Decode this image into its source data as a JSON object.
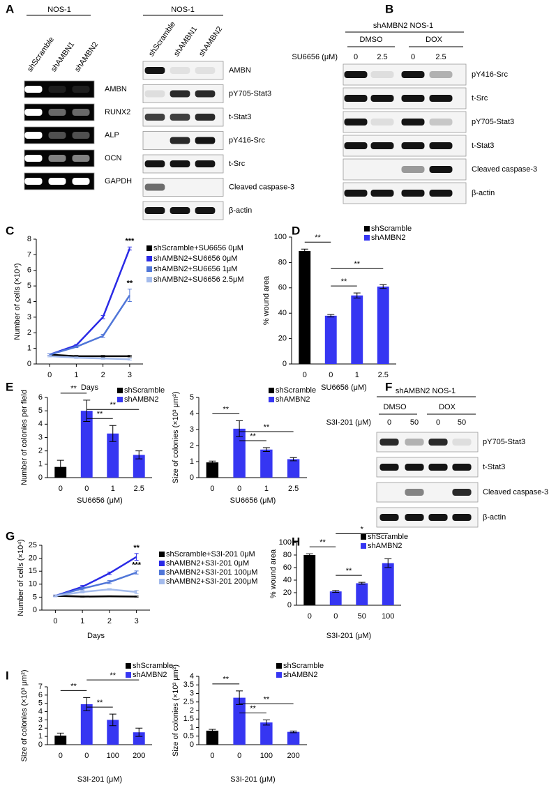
{
  "panel_letters": [
    "A",
    "B",
    "C",
    "D",
    "E",
    "F",
    "G",
    "H",
    "I"
  ],
  "blots": [
    {
      "header": "NOS-1",
      "lanes": [
        "shScramble",
        "shAMBN1",
        "shAMBN2"
      ],
      "rows": [
        "AMBN",
        "RUNX2",
        "ALP",
        "OCN",
        "GAPDH"
      ]
    },
    {
      "header": "NOS-1",
      "lanes": [
        "shScramble",
        "shAMBN1",
        "shAMBN2"
      ],
      "rows": [
        "AMBN",
        "pY705-Stat3",
        "t-Stat3",
        "pY416-Src",
        "t-Src",
        "Cleaved caspase-3",
        "β-actin"
      ]
    },
    {
      "header": "shAMBN2 NOS-1",
      "groups": [
        "DMSO",
        "DOX"
      ],
      "dose_label": "SU6656 (μM)",
      "doses": [
        "0",
        "2.5",
        "0",
        "2.5"
      ],
      "rows": [
        "pY416-Src",
        "t-Src",
        "pY705-Stat3",
        "t-Stat3",
        "Cleaved caspase-3",
        "β-actin"
      ]
    },
    {
      "header": "shAMBN2 NOS-1",
      "groups": [
        "DMSO",
        "DOX"
      ],
      "dose_label": "S3I-201 (μM)",
      "doses": [
        "0",
        "50",
        "0",
        "50"
      ],
      "rows": [
        "pY705-Stat3",
        "t-Stat3",
        "Cleaved caspase-3",
        "β-actin"
      ]
    }
  ],
  "chart_data": [
    {
      "type": "line",
      "y_label": "Number of cells (×10⁴)",
      "x_label": "Days",
      "x": [
        0,
        1,
        2,
        3
      ],
      "xlim": [
        -0.5,
        3.5
      ],
      "xticks": [
        0,
        1,
        2,
        3
      ],
      "ylim": [
        0,
        8
      ],
      "yticks": [
        0,
        1,
        2,
        3,
        4,
        5,
        6,
        7,
        8
      ],
      "series": [
        {
          "name": "shScramble+SU6656 0μM",
          "color": "#000000",
          "values": [
            0.6,
            0.5,
            0.5,
            0.5
          ],
          "errors": [
            0.05,
            0.05,
            0.05,
            0.05
          ]
        },
        {
          "name": "shAMBN2+SU6656 0μM",
          "color": "#2a2ae6",
          "values": [
            0.6,
            1.2,
            3.0,
            7.4
          ],
          "errors": [
            0.05,
            0.05,
            0.1,
            0.1
          ]
        },
        {
          "name": "shAMBN2+SU6656 1μM",
          "color": "#5076d8",
          "values": [
            0.6,
            1.1,
            1.8,
            4.4
          ],
          "errors": [
            0.05,
            0.05,
            0.1,
            0.4
          ]
        },
        {
          "name": "shAMBN2+SU6656 2.5μM",
          "color": "#a4bbec",
          "values": [
            0.5,
            0.4,
            0.35,
            0.3
          ],
          "errors": [
            0.05,
            0.05,
            0.05,
            0.05
          ]
        }
      ],
      "annotations": [
        {
          "label": "***",
          "series": 1,
          "point": 3
        },
        {
          "label": "**",
          "series": 2,
          "point": 3
        }
      ]
    },
    {
      "type": "bar",
      "y_label": "% wound area",
      "x_label": "SU6656 (μM)",
      "categories": [
        "0",
        "0",
        "1",
        "2.5"
      ],
      "ylim": [
        0,
        100
      ],
      "yticks": [
        0,
        20,
        40,
        60,
        80,
        100
      ],
      "series": [
        {
          "name": "shScramble",
          "color": "#000000",
          "values": [
            89,
            null,
            null,
            null
          ],
          "errors": [
            1.5,
            null,
            null,
            null
          ]
        },
        {
          "name": "shAMBN2",
          "color": "#3636f2",
          "values": [
            null,
            38,
            54,
            61
          ],
          "errors": [
            null,
            1,
            2,
            1.5
          ]
        }
      ],
      "brackets": [
        {
          "from": 0,
          "to": 1,
          "label": "**"
        },
        {
          "from": 1,
          "to": 2,
          "label": "**"
        },
        {
          "from": 1,
          "to": 3,
          "label": "**"
        }
      ]
    },
    {
      "type": "bar",
      "y_label": "Number of colonies per field",
      "x_label": "SU6656 (μM)",
      "categories": [
        "0",
        "0",
        "1",
        "2.5"
      ],
      "ylim": [
        0,
        6
      ],
      "yticks": [
        0,
        1,
        2,
        3,
        4,
        5,
        6
      ],
      "series": [
        {
          "name": "shScramble",
          "color": "#000000",
          "values": [
            0.8,
            null,
            null,
            null
          ],
          "errors": [
            0.5,
            null,
            null,
            null
          ]
        },
        {
          "name": "shAMBN2",
          "color": "#3636f2",
          "values": [
            null,
            5.0,
            3.3,
            1.7
          ],
          "errors": [
            null,
            0.8,
            0.6,
            0.3
          ]
        }
      ],
      "brackets": [
        {
          "from": 0,
          "to": 1,
          "label": "**"
        },
        {
          "from": 1,
          "to": 2,
          "label": "**"
        },
        {
          "from": 1,
          "to": 3,
          "label": "**"
        }
      ]
    },
    {
      "type": "bar",
      "y_label": "Size of colonies (×10³ μm²)",
      "x_label": "SU6656 (μM)",
      "categories": [
        "0",
        "0",
        "1",
        "2.5"
      ],
      "ylim": [
        0,
        5
      ],
      "yticks": [
        0,
        1,
        2,
        3,
        4,
        5
      ],
      "series": [
        {
          "name": "shScramble",
          "color": "#000000",
          "values": [
            0.95,
            null,
            null,
            null
          ],
          "errors": [
            0.08,
            null,
            null,
            null
          ]
        },
        {
          "name": "shAMBN2",
          "color": "#3636f2",
          "values": [
            null,
            3.05,
            1.75,
            1.15
          ],
          "errors": [
            null,
            0.5,
            0.12,
            0.1
          ]
        }
      ],
      "brackets": [
        {
          "from": 0,
          "to": 1,
          "label": "**"
        },
        {
          "from": 1,
          "to": 2,
          "label": "**"
        },
        {
          "from": 1,
          "to": 3,
          "label": "**"
        }
      ]
    },
    {
      "type": "line",
      "y_label": "Number of cells (×10⁴)",
      "x_label": "Days",
      "x": [
        0,
        1,
        2,
        3
      ],
      "xlim": [
        -0.5,
        3.5
      ],
      "xticks": [
        0,
        1,
        2,
        3
      ],
      "ylim": [
        0,
        25
      ],
      "yticks": [
        0,
        5,
        10,
        15,
        20,
        25
      ],
      "series": [
        {
          "name": "shScramble+S3I-201 0μM",
          "color": "#000000",
          "values": [
            5.5,
            5.2,
            5.3,
            5.2
          ],
          "errors": [
            0.2,
            0.2,
            0.2,
            0.2
          ]
        },
        {
          "name": "shAMBN2+S3I-201 0μM",
          "color": "#2a2ae6",
          "values": [
            5.5,
            9,
            14.2,
            20.5
          ],
          "errors": [
            0.3,
            0.5,
            0.5,
            1.3
          ]
        },
        {
          "name": "shAMBN2+S3I-201 100μM",
          "color": "#5076d8",
          "values": [
            5.5,
            8.3,
            10.8,
            14.5
          ],
          "errors": [
            0.3,
            0.5,
            0.6,
            0.6
          ]
        },
        {
          "name": "shAMBN2+S3I-201 200μM",
          "color": "#a4bbec",
          "values": [
            5.5,
            7,
            8,
            7
          ],
          "errors": [
            0.3,
            0.4,
            0.3,
            0.6
          ]
        }
      ],
      "annotations": [
        {
          "label": "**",
          "series": 1,
          "point": 3
        },
        {
          "label": "***",
          "series": 2,
          "point": 3
        }
      ]
    },
    {
      "type": "bar",
      "y_label": "% wound area",
      "x_label": "S3I-201 (μM)",
      "categories": [
        "0",
        "0",
        "50",
        "100"
      ],
      "ylim": [
        0,
        100
      ],
      "yticks": [
        0,
        20,
        40,
        60,
        80,
        100
      ],
      "series": [
        {
          "name": "shScramble",
          "color": "#000000",
          "values": [
            80,
            null,
            null,
            null
          ],
          "errors": [
            2,
            null,
            null,
            null
          ]
        },
        {
          "name": "shAMBN2",
          "color": "#3636f2",
          "values": [
            null,
            22,
            35,
            67
          ],
          "errors": [
            null,
            1.5,
            1.5,
            7
          ]
        }
      ],
      "brackets": [
        {
          "from": 0,
          "to": 1,
          "label": "**"
        },
        {
          "from": 1,
          "to": 2,
          "label": "**"
        },
        {
          "from": 1,
          "to": 3,
          "label": "*"
        }
      ]
    },
    {
      "type": "bar",
      "y_label": "Size of colonies (×10³ μm²)",
      "x_label": "S3I-201 (μM)",
      "categories": [
        "0",
        "0",
        "100",
        "200"
      ],
      "ylim": [
        0,
        7
      ],
      "yticks": [
        0,
        1,
        2,
        3,
        4,
        5,
        6,
        7
      ],
      "series": [
        {
          "name": "shScramble",
          "color": "#000000",
          "values": [
            1.1,
            null,
            null,
            null
          ],
          "errors": [
            0.3,
            null,
            null,
            null
          ]
        },
        {
          "name": "shAMBN2",
          "color": "#3636f2",
          "values": [
            null,
            4.9,
            3.0,
            1.5
          ],
          "errors": [
            null,
            0.8,
            0.7,
            0.5
          ]
        }
      ],
      "brackets": [
        {
          "from": 0,
          "to": 1,
          "label": "**"
        },
        {
          "from": 1,
          "to": 2,
          "label": "**"
        },
        {
          "from": 1,
          "to": 3,
          "label": "**"
        }
      ]
    },
    {
      "type": "bar",
      "y_label": "Size of colonies (×10³ μm²)",
      "x_label": "S3I-201 (μM)",
      "categories": [
        "0",
        "0",
        "100",
        "200"
      ],
      "ylim": [
        0,
        4
      ],
      "yticks": [
        0,
        0.5,
        1,
        1.5,
        2,
        2.5,
        3,
        3.5,
        4
      ],
      "series": [
        {
          "name": "shScramble",
          "color": "#000000",
          "values": [
            0.82,
            null,
            null,
            null
          ],
          "errors": [
            0.08,
            null,
            null,
            null
          ]
        },
        {
          "name": "shAMBN2",
          "color": "#3636f2",
          "values": [
            null,
            2.75,
            1.3,
            0.75
          ],
          "errors": [
            null,
            0.4,
            0.15,
            0.05
          ]
        }
      ],
      "brackets": [
        {
          "from": 0,
          "to": 1,
          "label": "**"
        },
        {
          "from": 1,
          "to": 2,
          "label": "**"
        },
        {
          "from": 1,
          "to": 3,
          "label": "**"
        }
      ]
    }
  ]
}
